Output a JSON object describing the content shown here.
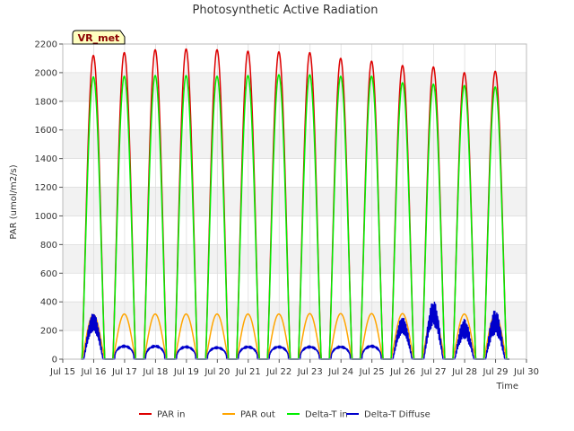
{
  "chart_data": {
    "type": "line",
    "title": "Photosynthetic Active Radiation",
    "xlabel": "Time",
    "ylabel": "PAR (umol/m2/s)",
    "badge": "VR_met",
    "ylim": [
      0,
      2200
    ],
    "yticks": [
      0,
      200,
      400,
      600,
      800,
      1000,
      1200,
      1400,
      1600,
      1800,
      2000,
      2200
    ],
    "xlim": [
      15,
      30
    ],
    "xticks": [
      15,
      16,
      17,
      18,
      19,
      20,
      21,
      22,
      23,
      24,
      25,
      26,
      27,
      28,
      29,
      30
    ],
    "xtick_labels": [
      "Jul 15",
      "Jul 16",
      "Jul 17",
      "Jul 18",
      "Jul 19",
      "Jul 20",
      "Jul 21",
      "Jul 22",
      "Jul 23",
      "Jul 24",
      "Jul 25",
      "Jul 26",
      "Jul 27",
      "Jul 28",
      "Jul 29",
      "Jul 30"
    ],
    "data_start_day": 15.6,
    "data_end_day": 29.45,
    "daily_peak_centers": [
      15.99,
      16.99,
      17.99,
      18.99,
      19.99,
      20.99,
      21.99,
      22.99,
      23.99,
      24.99,
      25.99,
      26.99,
      27.99,
      28.99
    ],
    "series": [
      {
        "name": "PAR in",
        "color": "#dd0000",
        "peaks": [
          2120,
          2140,
          2160,
          2165,
          2160,
          2150,
          2145,
          2140,
          2100,
          2080,
          2050,
          2040,
          2000,
          2010
        ]
      },
      {
        "name": "PAR out",
        "color": "#ffa500",
        "peaks": [
          310,
          315,
          315,
          315,
          315,
          315,
          315,
          318,
          318,
          318,
          318,
          320,
          315,
          310
        ]
      },
      {
        "name": "Delta-T in",
        "color": "#00ee00",
        "peaks": [
          1970,
          1975,
          1980,
          1980,
          1975,
          1980,
          1985,
          1985,
          1975,
          1975,
          1930,
          1920,
          1910,
          1900
        ]
      },
      {
        "name": "Delta-T Diffuse",
        "color": "#0000cc",
        "peaks": [
          330,
          90,
          90,
          85,
          80,
          85,
          85,
          85,
          85,
          90,
          300,
          410,
          270,
          330
        ]
      }
    ]
  }
}
